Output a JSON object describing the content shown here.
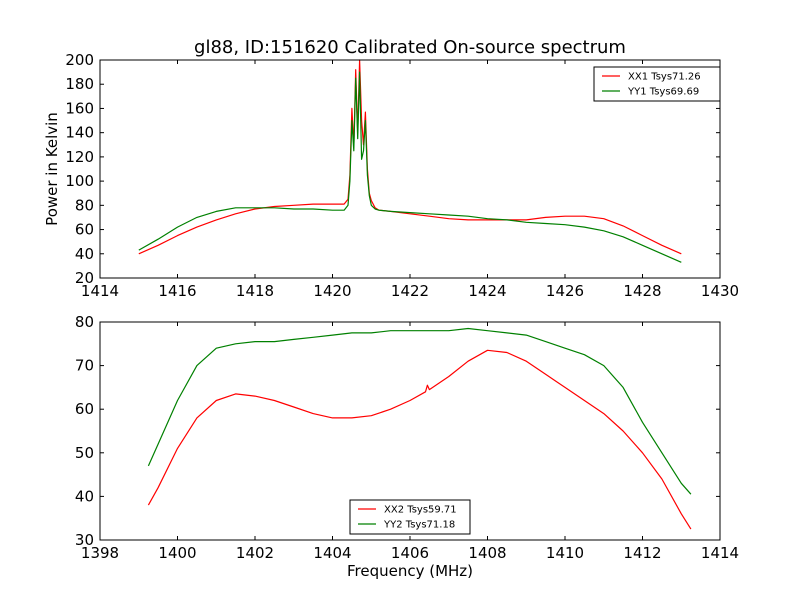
{
  "figure": {
    "title": "gl88, ID:151620 Calibrated On-source spectrum"
  },
  "chart_data": [
    {
      "type": "line",
      "title": "gl88, ID:151620 Calibrated On-source spectrum",
      "xlabel": "",
      "ylabel": "Power in Kelvin",
      "xlim": [
        1414,
        1430
      ],
      "ylim": [
        20,
        200
      ],
      "xticks": [
        1414,
        1416,
        1418,
        1420,
        1422,
        1424,
        1426,
        1428,
        1430
      ],
      "yticks": [
        20,
        40,
        60,
        80,
        100,
        120,
        140,
        160,
        180,
        200
      ],
      "grid": false,
      "legend": "top-right",
      "series": [
        {
          "name": "XX1 Tsys71.26",
          "color": "#ff0000",
          "x": [
            1415.0,
            1415.5,
            1416.0,
            1416.5,
            1417.0,
            1417.5,
            1418.0,
            1418.5,
            1419.0,
            1419.5,
            1420.0,
            1420.3,
            1420.4,
            1420.45,
            1420.5,
            1420.55,
            1420.6,
            1420.65,
            1420.7,
            1420.75,
            1420.8,
            1420.85,
            1420.9,
            1420.95,
            1421.0,
            1421.1,
            1421.2,
            1421.5,
            1422.0,
            1422.5,
            1423.0,
            1423.5,
            1424.0,
            1424.5,
            1425.0,
            1425.5,
            1426.0,
            1426.5,
            1427.0,
            1427.5,
            1428.0,
            1428.5,
            1429.0
          ],
          "values": [
            40,
            47,
            55,
            62,
            68,
            73,
            77,
            79,
            80,
            81,
            81,
            81,
            85,
            105,
            160,
            128,
            192,
            140,
            200,
            150,
            130,
            157,
            110,
            90,
            84,
            78,
            76,
            75,
            73,
            71,
            69,
            68,
            68,
            68,
            68,
            70,
            71,
            71,
            69,
            63,
            55,
            47,
            40
          ]
        },
        {
          "name": "YY1 Tsys69.69",
          "color": "#008000",
          "x": [
            1415.0,
            1415.5,
            1416.0,
            1416.5,
            1417.0,
            1417.5,
            1418.0,
            1418.5,
            1419.0,
            1419.5,
            1420.0,
            1420.3,
            1420.4,
            1420.45,
            1420.5,
            1420.55,
            1420.6,
            1420.65,
            1420.7,
            1420.75,
            1420.8,
            1420.85,
            1420.9,
            1420.95,
            1421.0,
            1421.1,
            1421.2,
            1421.5,
            1422.0,
            1422.5,
            1423.0,
            1423.5,
            1424.0,
            1424.5,
            1425.0,
            1425.5,
            1426.0,
            1426.5,
            1427.0,
            1427.5,
            1428.0,
            1428.5,
            1429.0
          ],
          "values": [
            43,
            52,
            62,
            70,
            75,
            78,
            78,
            78,
            77,
            77,
            76,
            76,
            80,
            100,
            150,
            125,
            185,
            135,
            190,
            118,
            125,
            150,
            105,
            88,
            80,
            77,
            76,
            75,
            74,
            73,
            72,
            71,
            69,
            68,
            66,
            65,
            64,
            62,
            59,
            54,
            47,
            40,
            33
          ]
        }
      ]
    },
    {
      "type": "line",
      "title": "",
      "xlabel": "Frequency (MHz)",
      "ylabel": "",
      "xlim": [
        1398,
        1414
      ],
      "ylim": [
        30,
        80
      ],
      "xticks": [
        1398,
        1400,
        1402,
        1404,
        1406,
        1408,
        1410,
        1412,
        1414
      ],
      "yticks": [
        30,
        40,
        50,
        60,
        70,
        80
      ],
      "grid": false,
      "legend": "bottom-center",
      "series": [
        {
          "name": "XX2 Tsys59.71",
          "color": "#ff0000",
          "x": [
            1399.25,
            1399.5,
            1400.0,
            1400.5,
            1401.0,
            1401.5,
            1402.0,
            1402.5,
            1403.0,
            1403.5,
            1404.0,
            1404.5,
            1405.0,
            1405.5,
            1406.0,
            1406.4,
            1406.45,
            1406.5,
            1407.0,
            1407.5,
            1408.0,
            1408.5,
            1409.0,
            1409.5,
            1410.0,
            1410.5,
            1411.0,
            1411.5,
            1412.0,
            1412.5,
            1413.0,
            1413.25
          ],
          "values": [
            38,
            42,
            51,
            58,
            62,
            63.5,
            63,
            62,
            60.5,
            59,
            58,
            58,
            58.5,
            60,
            62,
            64,
            65.5,
            64.5,
            67.5,
            71,
            73.5,
            73,
            71,
            68,
            65,
            62,
            59,
            55,
            50,
            44,
            36,
            32.5
          ]
        },
        {
          "name": "YY2 Tsys71.18",
          "color": "#008000",
          "x": [
            1399.25,
            1399.5,
            1400.0,
            1400.5,
            1401.0,
            1401.5,
            1402.0,
            1402.5,
            1403.0,
            1403.5,
            1404.0,
            1404.5,
            1405.0,
            1405.5,
            1406.0,
            1406.5,
            1407.0,
            1407.5,
            1408.0,
            1408.5,
            1409.0,
            1409.5,
            1410.0,
            1410.5,
            1411.0,
            1411.5,
            1412.0,
            1412.5,
            1413.0,
            1413.25
          ],
          "values": [
            47,
            52,
            62,
            70,
            74,
            75,
            75.5,
            75.5,
            76,
            76.5,
            77,
            77.5,
            77.5,
            78,
            78,
            78,
            78,
            78.5,
            78,
            77.5,
            77,
            75.5,
            74,
            72.5,
            70,
            65,
            57,
            50,
            43,
            40.5
          ]
        }
      ]
    }
  ]
}
